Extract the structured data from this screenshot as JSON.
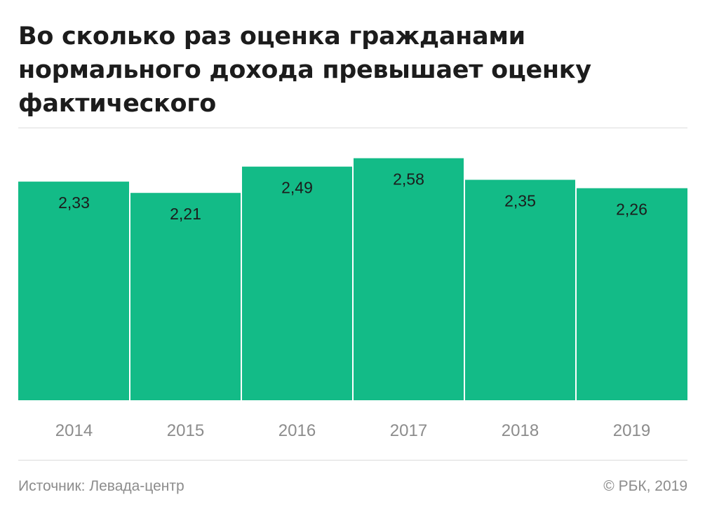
{
  "title_lines": [
    "Во сколько раз оценка гражданами",
    "нормального дохода превышает оценку",
    "фактического"
  ],
  "footer": {
    "source": "Источник: Левада-центр",
    "copyright": "© РБК, 2019"
  },
  "colors": {
    "bar": "#13bb87",
    "bar_label": "#1c1c1c",
    "tick_label": "#8c8c8c",
    "divider": "#ffffff"
  },
  "chart_data": {
    "type": "bar",
    "title": "Во сколько раз оценка гражданами нормального дохода превышает оценку фактического",
    "categories": [
      "2014",
      "2015",
      "2016",
      "2017",
      "2018",
      "2019"
    ],
    "values": [
      2.33,
      2.21,
      2.49,
      2.58,
      2.35,
      2.26
    ],
    "value_labels": [
      "2,33",
      "2,21",
      "2,49",
      "2,58",
      "2,35",
      "2,26"
    ],
    "xlabel": "",
    "ylabel": "",
    "ylim": [
      0,
      2.6
    ],
    "grid": false,
    "legend": "none"
  }
}
